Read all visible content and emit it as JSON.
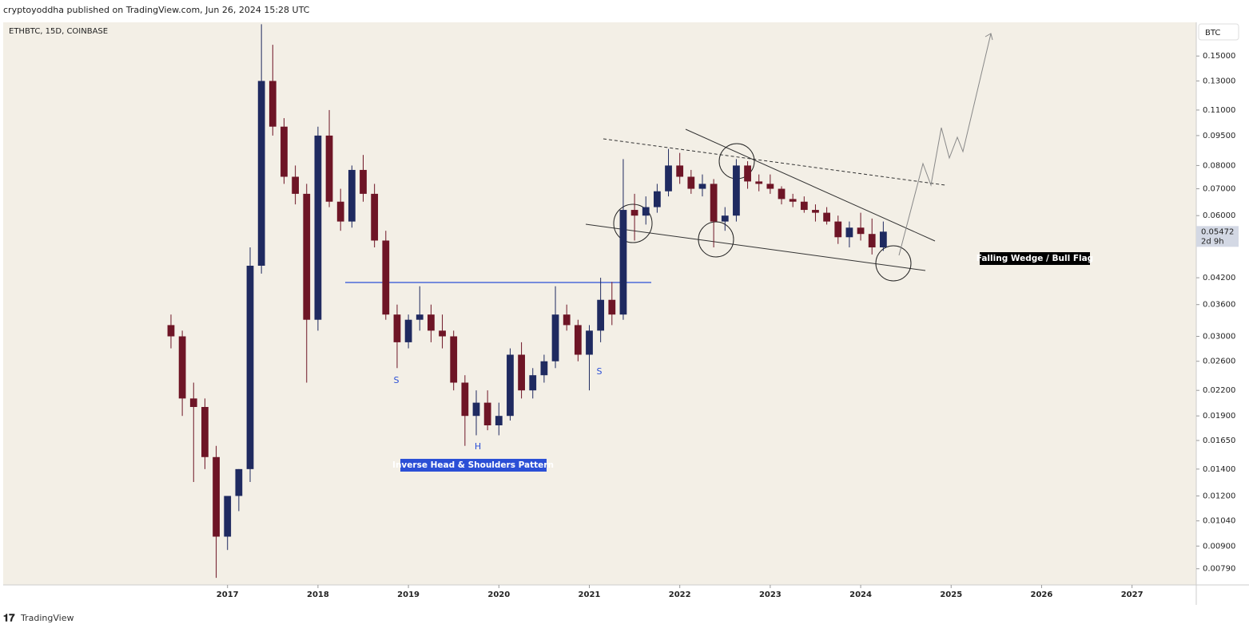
{
  "header": "cryptoyoddha published on TradingView.com, Jun 26, 2024 15:28 UTC",
  "footer": "TradingView",
  "chart_data": {
    "type": "candlestick",
    "title": "ETHBTC, 15D, COINBASE",
    "currency": "BTC",
    "countdown": "2d 9h",
    "log_scale": true,
    "grid": false,
    "up_color": "#1f2a60",
    "down_color": "#6e1526",
    "annotations": [
      "S",
      "H",
      "S",
      "Inverse Head & Shoulders Pattern",
      "Falling Wedge / Bull Flag"
    ],
    "x": [
      2016.375,
      2016.5,
      2016.625,
      2016.75,
      2016.875,
      2017.0,
      2017.125,
      2017.25,
      2017.375,
      2017.5,
      2017.625,
      2017.75,
      2017.875,
      2018.0,
      2018.125,
      2018.25,
      2018.375,
      2018.5,
      2018.625,
      2018.75,
      2018.875,
      2019.0,
      2019.125,
      2019.25,
      2019.375,
      2019.5,
      2019.625,
      2019.75,
      2019.875,
      2020.0,
      2020.125,
      2020.25,
      2020.375,
      2020.5,
      2020.625,
      2020.75,
      2020.875,
      2021.0,
      2021.125,
      2021.25,
      2021.375,
      2021.5,
      2021.625,
      2021.75,
      2021.875,
      2022.0,
      2022.125,
      2022.25,
      2022.375,
      2022.5,
      2022.625,
      2022.75,
      2022.875,
      2023.0,
      2023.125,
      2023.25,
      2023.375,
      2023.5,
      2023.625,
      2023.75,
      2023.875,
      2024.0,
      2024.125,
      2024.25
    ],
    "open": [
      0.032,
      0.03,
      0.021,
      0.02,
      0.015,
      0.0095,
      0.012,
      0.014,
      0.045,
      0.13,
      0.1,
      0.075,
      0.068,
      0.033,
      0.095,
      0.065,
      0.058,
      0.078,
      0.068,
      0.052,
      0.034,
      0.029,
      0.033,
      0.034,
      0.031,
      0.03,
      0.023,
      0.019,
      0.0205,
      0.018,
      0.019,
      0.027,
      0.022,
      0.024,
      0.026,
      0.034,
      0.032,
      0.027,
      0.031,
      0.037,
      0.034,
      0.062,
      0.06,
      0.063,
      0.069,
      0.08,
      0.075,
      0.07,
      0.072,
      0.058,
      0.06,
      0.08,
      0.073,
      0.072,
      0.07,
      0.066,
      0.065,
      0.062,
      0.061,
      0.058,
      0.053,
      0.056,
      0.054,
      0.05
    ],
    "high": [
      0.034,
      0.031,
      0.023,
      0.021,
      0.016,
      0.012,
      0.014,
      0.05,
      0.18,
      0.16,
      0.105,
      0.08,
      0.072,
      0.1,
      0.11,
      0.07,
      0.08,
      0.085,
      0.072,
      0.055,
      0.036,
      0.034,
      0.04,
      0.036,
      0.034,
      0.031,
      0.024,
      0.022,
      0.022,
      0.0205,
      0.028,
      0.029,
      0.025,
      0.027,
      0.04,
      0.036,
      0.033,
      0.032,
      0.042,
      0.041,
      0.083,
      0.068,
      0.067,
      0.072,
      0.088,
      0.086,
      0.078,
      0.076,
      0.074,
      0.063,
      0.083,
      0.082,
      0.076,
      0.076,
      0.071,
      0.068,
      0.067,
      0.064,
      0.063,
      0.06,
      0.058,
      0.061,
      0.059,
      0.058
    ],
    "low": [
      0.028,
      0.019,
      0.013,
      0.014,
      0.0075,
      0.0088,
      0.011,
      0.013,
      0.043,
      0.095,
      0.072,
      0.064,
      0.023,
      0.031,
      0.063,
      0.055,
      0.056,
      0.065,
      0.05,
      0.033,
      0.025,
      0.028,
      0.031,
      0.029,
      0.028,
      0.022,
      0.016,
      0.017,
      0.0175,
      0.017,
      0.0185,
      0.021,
      0.021,
      0.023,
      0.025,
      0.031,
      0.026,
      0.022,
      0.029,
      0.032,
      0.033,
      0.052,
      0.057,
      0.061,
      0.067,
      0.072,
      0.068,
      0.067,
      0.05,
      0.055,
      0.058,
      0.07,
      0.069,
      0.068,
      0.064,
      0.063,
      0.061,
      0.058,
      0.057,
      0.051,
      0.05,
      0.052,
      0.048,
      0.049
    ],
    "close": [
      0.03,
      0.021,
      0.02,
      0.015,
      0.0095,
      0.012,
      0.014,
      0.045,
      0.13,
      0.1,
      0.075,
      0.068,
      0.033,
      0.095,
      0.065,
      0.058,
      0.078,
      0.068,
      0.052,
      0.034,
      0.029,
      0.033,
      0.034,
      0.031,
      0.03,
      0.023,
      0.019,
      0.0205,
      0.018,
      0.019,
      0.027,
      0.022,
      0.024,
      0.026,
      0.034,
      0.032,
      0.027,
      0.031,
      0.037,
      0.034,
      0.062,
      0.06,
      0.063,
      0.069,
      0.08,
      0.075,
      0.07,
      0.072,
      0.058,
      0.06,
      0.08,
      0.073,
      0.072,
      0.07,
      0.066,
      0.065,
      0.062,
      0.061,
      0.058,
      0.053,
      0.056,
      0.054,
      0.05,
      0.05472
    ],
    "xlim": [
      2014.52,
      2027.71
    ],
    "xticks": [
      2017,
      2018,
      2019,
      2020,
      2021,
      2022,
      2023,
      2024,
      2025,
      2026,
      2027
    ],
    "ylim": [
      0.0072,
      0.182
    ],
    "yticks": [
      {
        "value": 0.15,
        "label": "0.15000"
      },
      {
        "value": 0.13,
        "label": "0.13000"
      },
      {
        "value": 0.11,
        "label": "0.11000"
      },
      {
        "value": 0.095,
        "label": "0.09500"
      },
      {
        "value": 0.08,
        "label": "0.08000"
      },
      {
        "value": 0.07,
        "label": "0.07000"
      },
      {
        "value": 0.06,
        "label": "0.06000"
      },
      {
        "value": 0.042,
        "label": "0.04200"
      },
      {
        "value": 0.036,
        "label": "0.03600"
      },
      {
        "value": 0.03,
        "label": "0.03000"
      },
      {
        "value": 0.026,
        "label": "0.02600"
      },
      {
        "value": 0.022,
        "label": "0.02200"
      },
      {
        "value": 0.019,
        "label": "0.01900"
      },
      {
        "value": 0.0165,
        "label": "0.01650"
      },
      {
        "value": 0.014,
        "label": "0.01400"
      },
      {
        "value": 0.012,
        "label": "0.01200"
      },
      {
        "value": 0.0104,
        "label": "0.01040"
      },
      {
        "value": 0.009,
        "label": "0.00900"
      },
      {
        "value": 0.0079,
        "label": "0.00790"
      }
    ]
  }
}
